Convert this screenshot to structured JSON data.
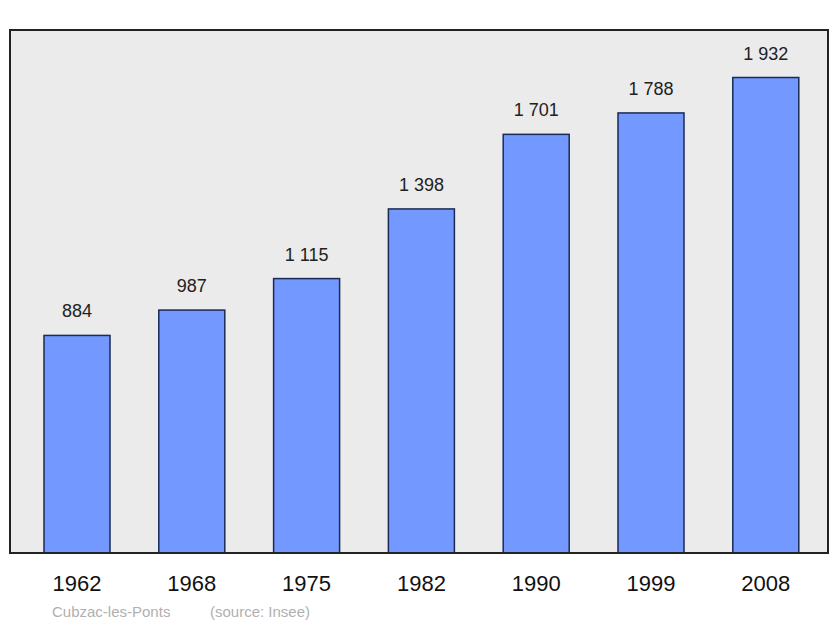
{
  "chart_data": {
    "type": "bar",
    "title": "Cubzac-les-Ponts",
    "subtitle": "(source: Insee)",
    "categories": [
      "1962",
      "1968",
      "1975",
      "1982",
      "1990",
      "1999",
      "2008"
    ],
    "values": [
      884,
      987,
      1115,
      1398,
      1701,
      1788,
      1932
    ],
    "value_labels": [
      "884",
      "987",
      "1 115",
      "1 398",
      "1 701",
      "1 788",
      "1 932"
    ],
    "color": "#7398ff",
    "ylim": [
      0,
      2125
    ],
    "grid": false,
    "data_labels": true,
    "tick_labels": "x"
  }
}
